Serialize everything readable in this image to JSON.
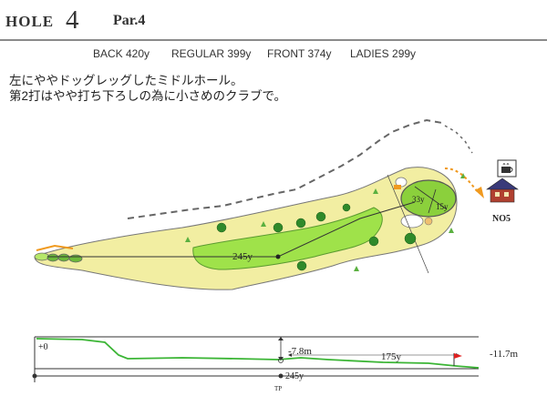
{
  "header": {
    "hole_label": "HOLE",
    "hole_number": "4",
    "par": "Par.4"
  },
  "yardages": [
    {
      "label": "BACK 420y"
    },
    {
      "label": "REGULAR 399y"
    },
    {
      "label": "FRONT 374y"
    },
    {
      "label": "LADIES 299y"
    }
  ],
  "description": [
    "左にややドッグレッグしたミドルホール。",
    "第2打はやや打ち下ろしの為に小さめのクラブで。"
  ],
  "map": {
    "drive_distance": "245y",
    "green_depth": "33y",
    "green_width": "15y",
    "next_hole_label": "NO5",
    "next_hole_icon": "clubhouse-icon",
    "rest_icon": "coffee-cup-icon"
  },
  "elevation": {
    "start_label": "+0",
    "mid_drop": "-7.8m",
    "end_drop": "-11.7m",
    "remaining": "175y",
    "drive_mark": "245y",
    "tee_label": "TP"
  },
  "colors": {
    "fairway": "#9fe24a",
    "rough": "#f2eea2",
    "green": "#8bd03c",
    "profile_line": "#3bb535",
    "flag": "#e02020",
    "arrow": "#f09a20"
  }
}
